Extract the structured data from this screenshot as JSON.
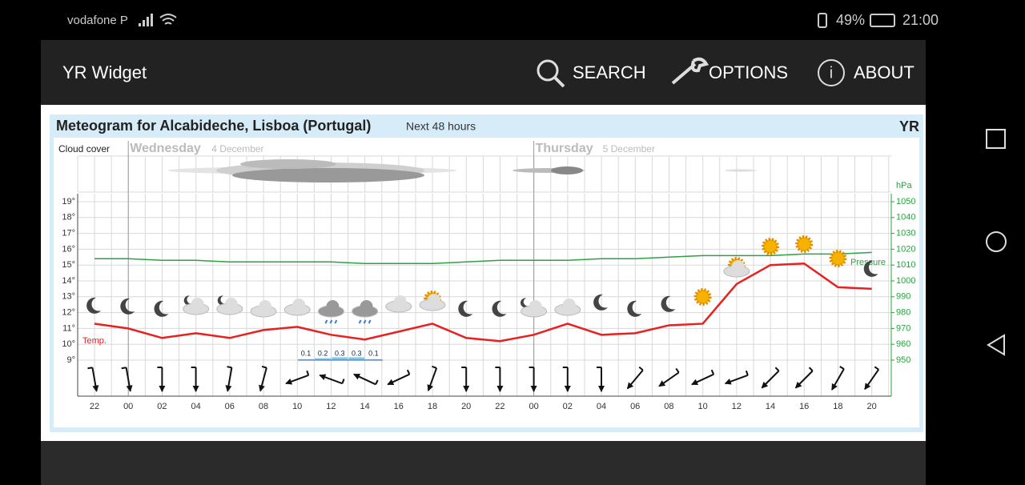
{
  "status_bar": {
    "carrier": "vodafone P",
    "battery": "49%",
    "time": "21:00"
  },
  "app_bar": {
    "title": "YR Widget",
    "actions": [
      "SEARCH",
      "OPTIONS",
      "ABOUT"
    ]
  },
  "meteogram": {
    "title": "Meteogram for Alcabideche, Lisboa (Portugal)",
    "subtitle": "Next 48 hours",
    "logo": "YR",
    "cloud_label": "Cloud cover",
    "days": [
      {
        "name": "Wednesday",
        "date": "4 December"
      },
      {
        "name": "Thursday",
        "date": "5 December"
      }
    ],
    "hours": [
      "22",
      "00",
      "02",
      "04",
      "06",
      "08",
      "10",
      "12",
      "14",
      "16",
      "18",
      "20",
      "22",
      "00",
      "02",
      "04",
      "06",
      "08",
      "10",
      "12",
      "14",
      "16",
      "18",
      "20"
    ],
    "temperature": {
      "label": "Temp.",
      "color": "#e8201f",
      "values": [
        11.3,
        11.0,
        10.4,
        10.7,
        10.4,
        10.9,
        11.1,
        10.6,
        10.3,
        10.8,
        11.3,
        10.4,
        10.2,
        10.6,
        11.3,
        10.6,
        10.7,
        11.2,
        11.3,
        13.8,
        15.0,
        15.1,
        13.6,
        13.5
      ],
      "ylim": [
        9,
        19
      ],
      "yticks": [
        {
          "value": 9,
          "label": "9°"
        },
        {
          "value": 10,
          "label": "10°"
        },
        {
          "value": 11,
          "label": "11°"
        },
        {
          "value": 12,
          "label": "12°"
        },
        {
          "value": 13,
          "label": "13°"
        },
        {
          "value": 14,
          "label": "14°"
        },
        {
          "value": 15,
          "label": "15°"
        },
        {
          "value": 16,
          "label": "16°"
        },
        {
          "value": 17,
          "label": "17°"
        },
        {
          "value": 18,
          "label": "18°"
        },
        {
          "value": 19,
          "label": "19°"
        }
      ]
    },
    "pressure": {
      "label": "Pressure",
      "unit": "hPa",
      "color": "#2ea043",
      "values": [
        1014,
        1014,
        1013,
        1013,
        1012,
        1012,
        1012,
        1012,
        1011,
        1011,
        1011,
        1012,
        1013,
        1013,
        1013,
        1014,
        1014,
        1015,
        1016,
        1016,
        1016,
        1017,
        1017,
        1018
      ],
      "ylim": [
        950,
        1050
      ],
      "yticks": [
        950,
        960,
        970,
        980,
        990,
        1000,
        1010,
        1020,
        1030,
        1040,
        1050
      ]
    },
    "precipitation": {
      "values": [
        0.1,
        0.2,
        0.3,
        0.3,
        0.1
      ],
      "color": "#7fc8ea"
    }
  }
}
